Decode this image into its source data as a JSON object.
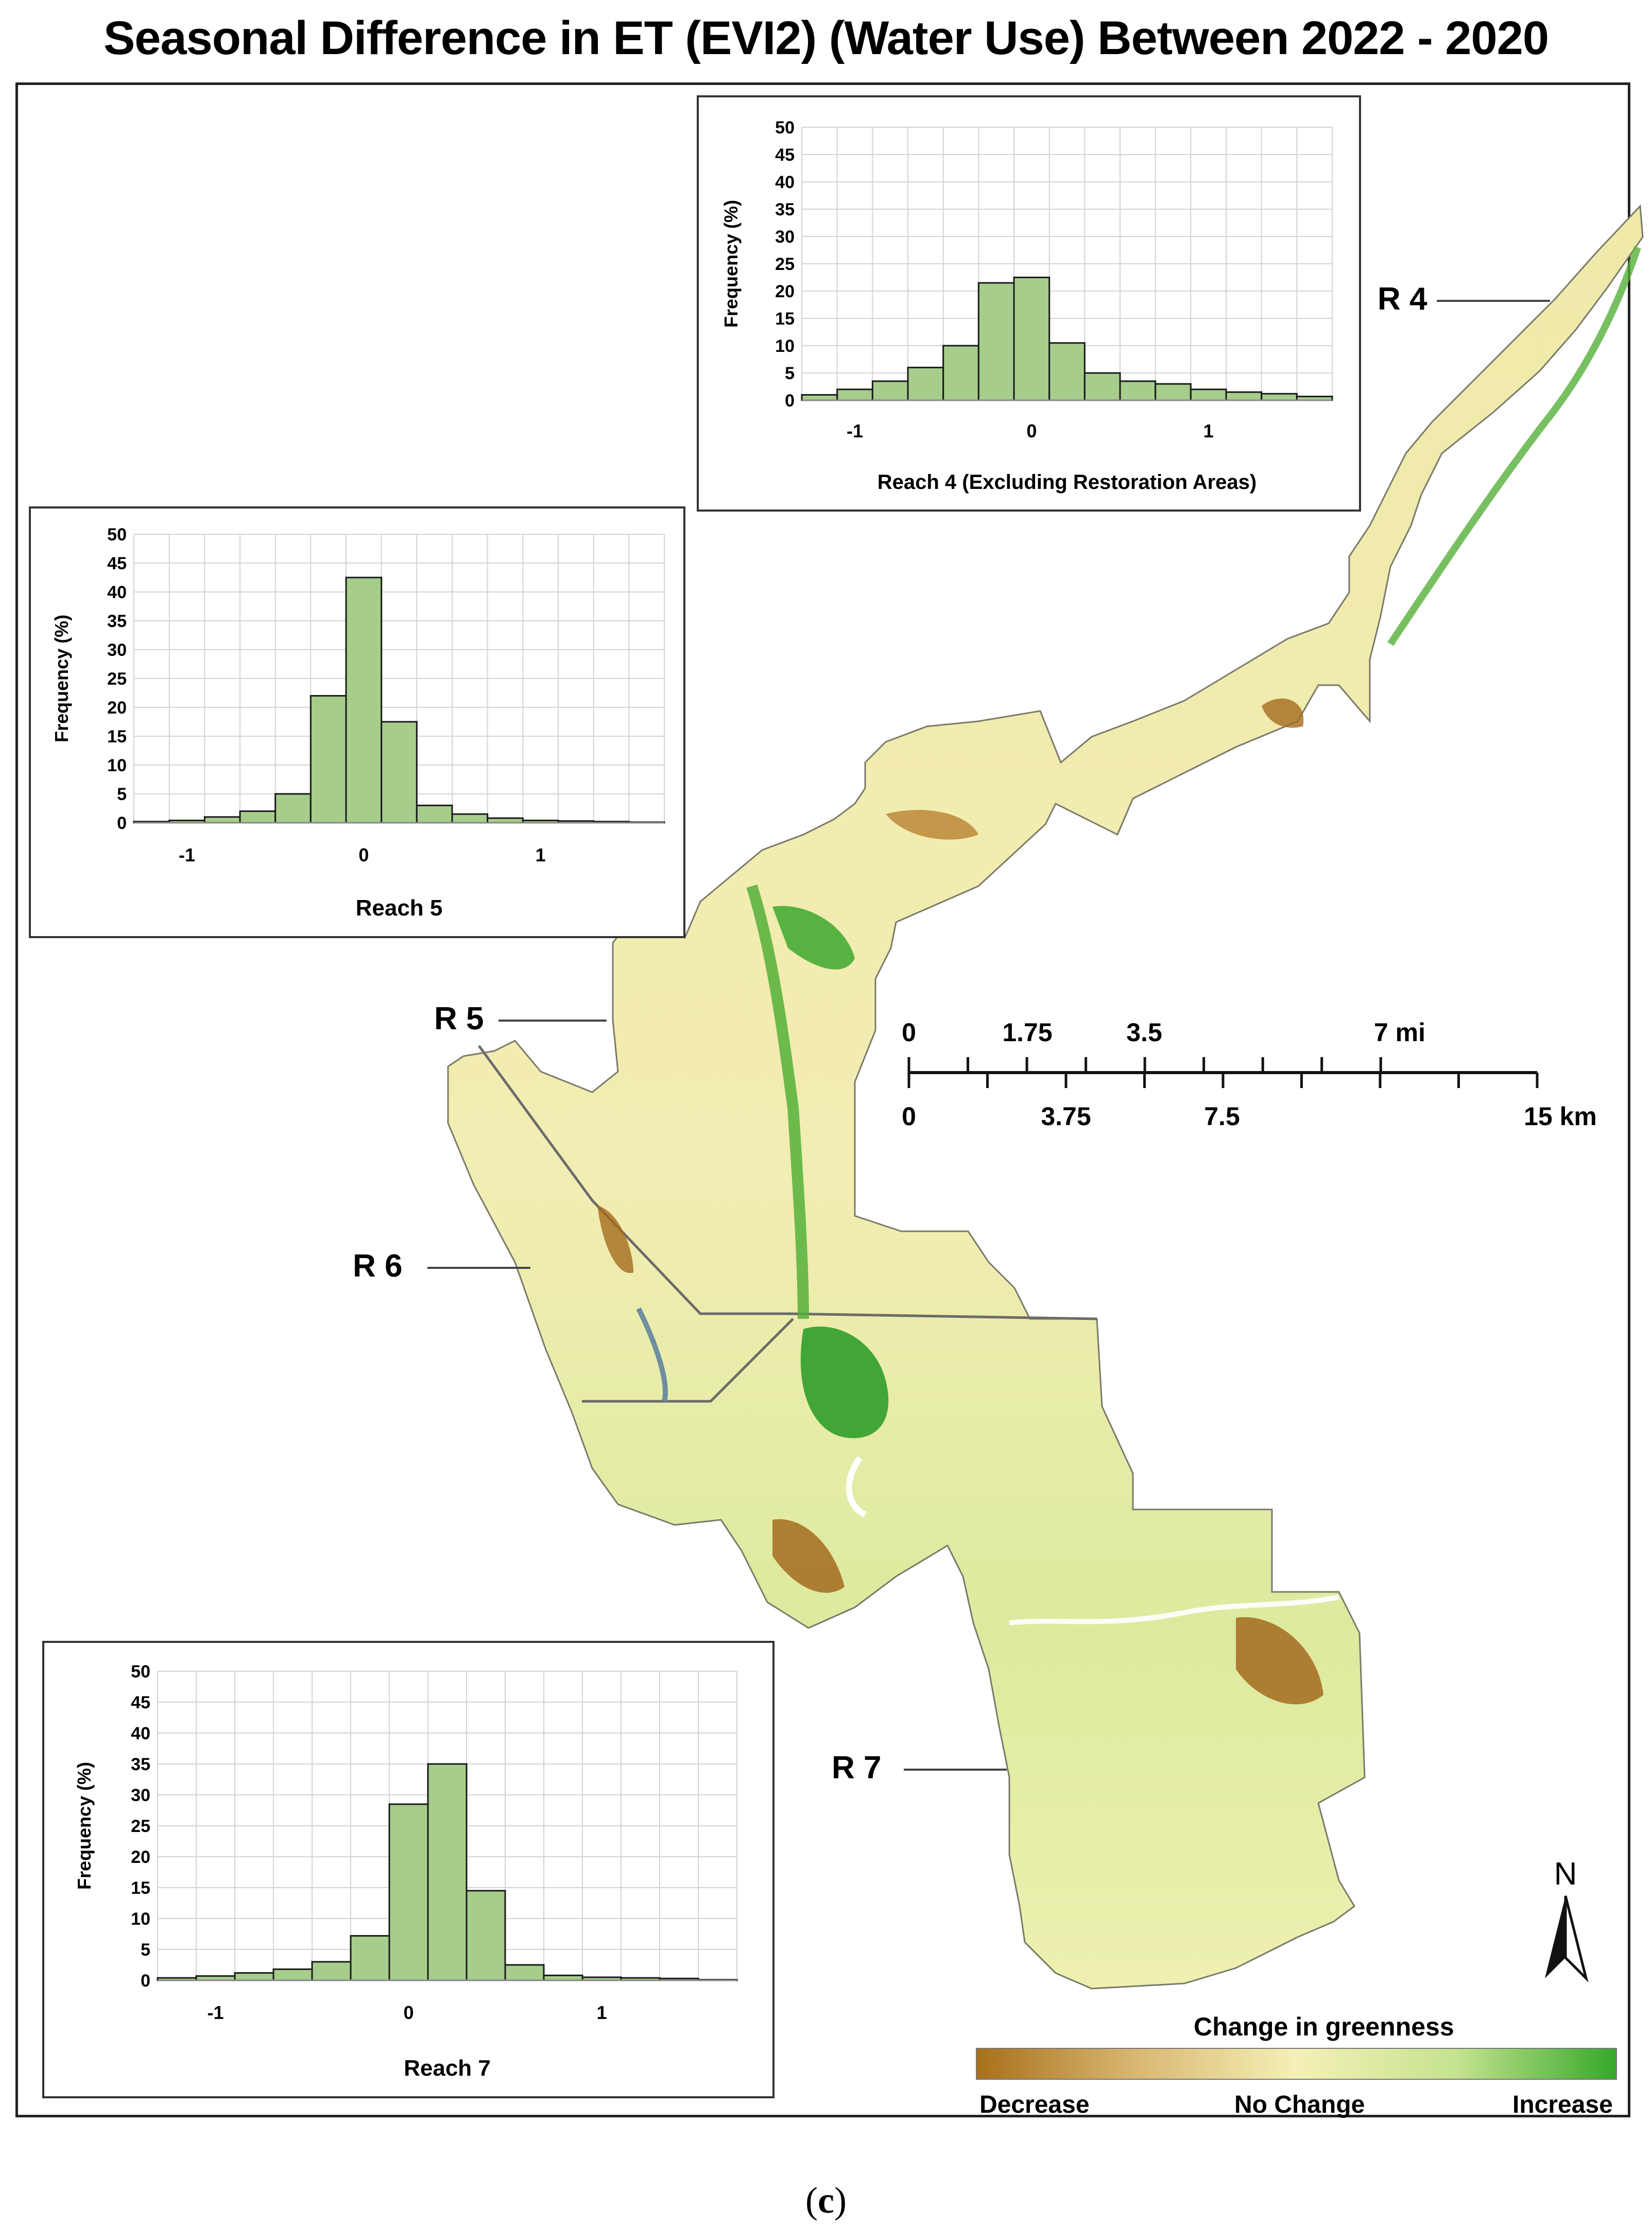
{
  "title": "Seasonal Difference in ET (EVI2) (Water Use) Between 2022 - 2020",
  "caption": "c",
  "reach_labels": [
    "R 4",
    "R 5",
    "R 6",
    "R 7"
  ],
  "scale_bar": {
    "miles_labels": [
      "0",
      "1.75",
      "3.5",
      "7 mi"
    ],
    "km_labels": [
      "0",
      "3.75",
      "7.5",
      "15 km"
    ]
  },
  "north_arrow": "N",
  "legend": {
    "title": "Change in greenness",
    "low_label": "Decrease",
    "mid_label": "No Change",
    "high_label": "Increase",
    "colors": [
      "#a8701a",
      "#d9b873",
      "#f5f0b6",
      "#c5e38f",
      "#36a82a"
    ]
  },
  "colors": {
    "land": "#f3eeb3",
    "bar_fill": "#a6cd8b",
    "grid": "#d3d3d3",
    "decrease": "#a46b1e",
    "increase": "#3fa92f",
    "boundary": "#6b6b6b"
  },
  "chart_data": [
    {
      "type": "bar",
      "xlabel": "Reach 4 (Excluding Restoration Areas)",
      "ylabel": "Frequency (%)",
      "ylim": [
        0,
        50
      ],
      "yticks": [
        "0",
        "5",
        "10",
        "15",
        "20",
        "25",
        "30",
        "35",
        "40",
        "45",
        "50"
      ],
      "xticks": [
        "-1",
        "0",
        "1"
      ],
      "bin_width": 0.2,
      "x_range": [
        -1.3,
        1.7
      ],
      "bins": [
        -1.2,
        -1.0,
        -0.8,
        -0.6,
        -0.4,
        -0.2,
        0.0,
        0.2,
        0.4,
        0.6,
        0.8,
        1.0,
        1.2,
        1.4,
        1.6
      ],
      "values": [
        1,
        2,
        3.5,
        6,
        10,
        21.5,
        22.5,
        10.5,
        5,
        3.5,
        3,
        2,
        1.5,
        1.2,
        0.7
      ]
    },
    {
      "type": "bar",
      "xlabel": "Reach 5",
      "ylabel": "Frequency (%)",
      "ylim": [
        0,
        50
      ],
      "yticks": [
        "0",
        "5",
        "10",
        "15",
        "20",
        "25",
        "30",
        "35",
        "40",
        "45",
        "50"
      ],
      "xticks": [
        "-1",
        "0",
        "1"
      ],
      "bin_width": 0.2,
      "x_range": [
        -1.3,
        1.7
      ],
      "bins": [
        -1.2,
        -1.0,
        -0.8,
        -0.6,
        -0.4,
        -0.2,
        0.0,
        0.2,
        0.4,
        0.6,
        0.8,
        1.0,
        1.2,
        1.4,
        1.6
      ],
      "values": [
        0.2,
        0.4,
        1,
        2,
        5,
        22,
        42.5,
        17.5,
        3,
        1.5,
        0.8,
        0.4,
        0.3,
        0.2,
        0.1
      ]
    },
    {
      "type": "bar",
      "xlabel": "Reach 7",
      "ylabel": "Frequency (%)",
      "ylim": [
        0,
        50
      ],
      "yticks": [
        "0",
        "5",
        "10",
        "15",
        "20",
        "25",
        "30",
        "35",
        "40",
        "45",
        "50"
      ],
      "xticks": [
        "-1",
        "0",
        "1"
      ],
      "bin_width": 0.2,
      "x_range": [
        -1.3,
        1.7
      ],
      "bins": [
        -1.2,
        -1.0,
        -0.8,
        -0.6,
        -0.4,
        -0.2,
        0.0,
        0.2,
        0.4,
        0.6,
        0.8,
        1.0,
        1.2,
        1.4,
        1.6
      ],
      "values": [
        0.4,
        0.7,
        1.2,
        1.8,
        3,
        7.2,
        28.5,
        35,
        14.5,
        2.5,
        0.8,
        0.5,
        0.4,
        0.3,
        0.1
      ]
    }
  ]
}
